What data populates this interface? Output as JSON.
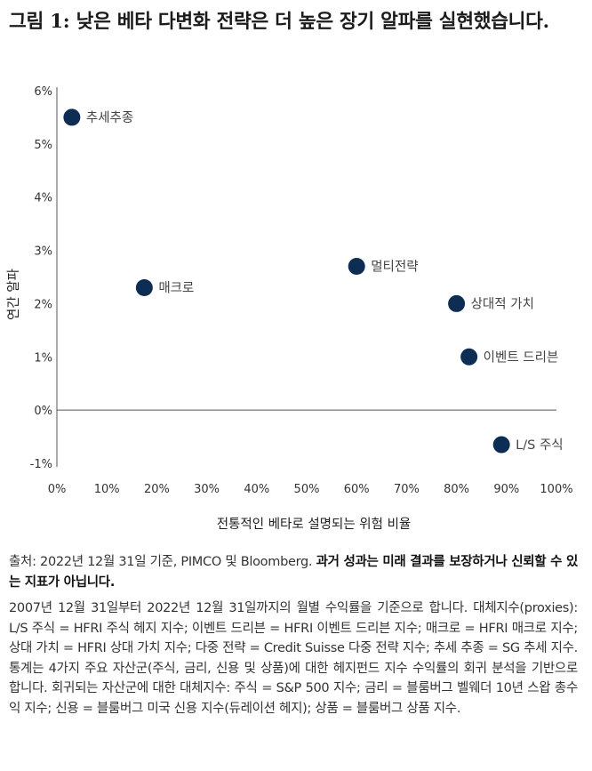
{
  "title": "그림 1: 낮은 베타 다변화 전략은 더 높은 장기 알파를 실현했습니다.",
  "chart_data": {
    "type": "scatter",
    "xlabel": "전통적인 베타로 설명되는 위험 비율",
    "ylabel": "연간 알파",
    "xlim": [
      0,
      100
    ],
    "ylim": [
      -1,
      6
    ],
    "x_ticks": [
      "0%",
      "10%",
      "20%",
      "30%",
      "40%",
      "50%",
      "60%",
      "70%",
      "80%",
      "90%",
      "100%"
    ],
    "y_ticks": [
      "-1%",
      "0%",
      "1%",
      "2%",
      "3%",
      "4%",
      "5%",
      "6%"
    ],
    "grid": false,
    "marker_color": "#0d2d55",
    "points": [
      {
        "label": "추세추종",
        "x": 3,
        "y": 5.5
      },
      {
        "label": "매크로",
        "x": 17.5,
        "y": 2.3
      },
      {
        "label": "멀티전략",
        "x": 60,
        "y": 2.7
      },
      {
        "label": "상대적 가치",
        "x": 80,
        "y": 2.0
      },
      {
        "label": "이벤트 드리븐",
        "x": 82.5,
        "y": 1.0
      },
      {
        "label": "L/S 주식",
        "x": 89,
        "y": -0.65
      }
    ]
  },
  "notes": {
    "source_prefix": "출처: 2022년 12월 31일 기준, PIMCO 및 Bloomberg.",
    "source_bold": "과거 성과는 미래 결과를 보장하거나 신뢰할 수 있는 지표가 아닙니다.",
    "methodology": "2007년 12월 31일부터 2022년 12월 31일까지의 월별 수익률을 기준으로 합니다. 대체지수(proxies): L/S 주식 = HFRI 주식 헤지 지수; 이벤트 드리븐 = HFRI 이벤트 드리븐 지수; 매크로 = HFRI 매크로 지수; 상대 가치 = HFRI 상대 가치 지수; 다중 전략 = Credit Suisse 다중 전략 지수; 추세 추종 = SG 추세 지수. 통계는 4가지 주요 자산군(주식, 금리, 신용 및 상품)에 대한 헤지펀드 지수 수익률의 회귀 분석을 기반으로 합니다. 회귀되는 자산군에 대한 대체지수: 주식 = S&P 500 지수; 금리 = 블룸버그 벨웨더 10년 스왑 총수익 지수; 신용 = 블룸버그 미국 신용 지수(듀레이션 헤지); 상품 = 블룸버그 상품 지수."
  }
}
